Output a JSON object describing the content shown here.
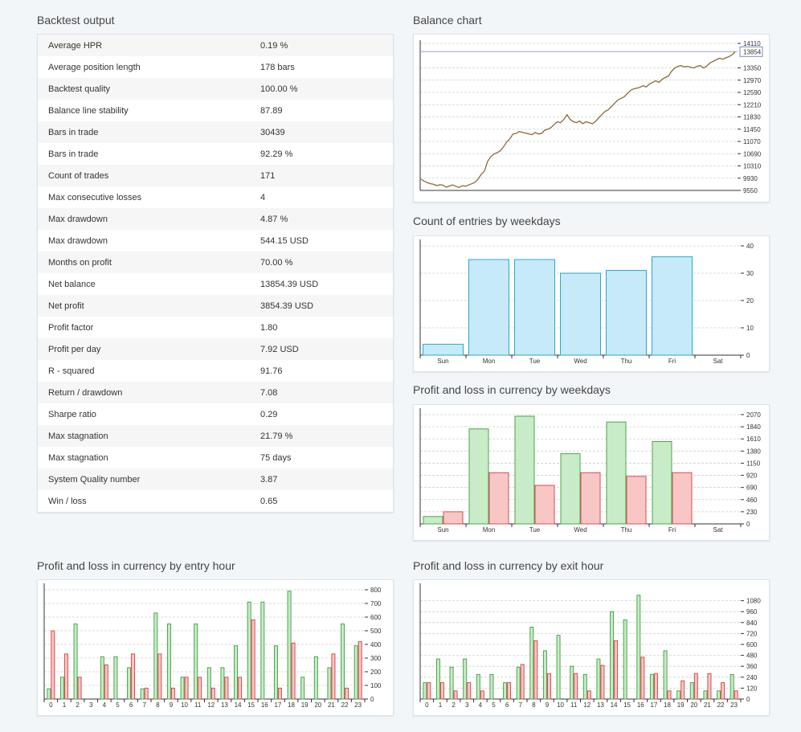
{
  "titles": {
    "backtest": "Backtest output",
    "balance": "Balance chart",
    "entries_weekdays": "Count of entries by weekdays",
    "pl_weekdays": "Profit and loss in currency by weekdays",
    "pl_entry_hour": "Profit and loss in currency by entry hour",
    "pl_exit_hour": "Profit and loss in currency by exit hour"
  },
  "stats": [
    {
      "label": "Average HPR",
      "value": "0.19 %"
    },
    {
      "label": "Average position length",
      "value": "178 bars"
    },
    {
      "label": "Backtest quality",
      "value": "100.00 %"
    },
    {
      "label": "Balance line stability",
      "value": "87.89"
    },
    {
      "label": "Bars in trade",
      "value": "30439"
    },
    {
      "label": "Bars in trade",
      "value": "92.29 %"
    },
    {
      "label": "Count of trades",
      "value": "171"
    },
    {
      "label": "Max consecutive losses",
      "value": "4"
    },
    {
      "label": "Max drawdown",
      "value": "4.87 %"
    },
    {
      "label": "Max drawdown",
      "value": "544.15 USD"
    },
    {
      "label": "Months on profit",
      "value": "70.00 %"
    },
    {
      "label": "Net balance",
      "value": "13854.39 USD"
    },
    {
      "label": "Net profit",
      "value": "3854.39 USD"
    },
    {
      "label": "Profit factor",
      "value": "1.80"
    },
    {
      "label": "Profit per day",
      "value": "7.92 USD"
    },
    {
      "label": "R - squared",
      "value": "91.76"
    },
    {
      "label": "Return / drawdown",
      "value": "7.08"
    },
    {
      "label": "Sharpe ratio",
      "value": "0.29"
    },
    {
      "label": "Max stagnation",
      "value": "21.79 %"
    },
    {
      "label": "Max stagnation",
      "value": "75 days"
    },
    {
      "label": "System Quality number",
      "value": "3.87"
    },
    {
      "label": "Win / loss",
      "value": "0.65"
    }
  ],
  "colors": {
    "profit_fill": "#c8ebc8",
    "profit_stroke": "#4ca64c",
    "loss_fill": "#f9c6c6",
    "loss_stroke": "#d94c4c",
    "count_fill": "#c6eaf8",
    "count_stroke": "#29a8cc",
    "balance_line": "#8a6a3a",
    "grid": "#cfcfcf"
  },
  "chart_data": [
    {
      "id": "balance",
      "type": "line",
      "yticks": [
        "14110",
        "13350",
        "12970",
        "12590",
        "12210",
        "11830",
        "11450",
        "11070",
        "10690",
        "10310",
        "9930",
        "9550"
      ],
      "ylim": [
        9550,
        14110
      ],
      "current_label": "13854",
      "current_value": 13854,
      "values": [
        9900,
        9840,
        9790,
        9760,
        9740,
        9700,
        9730,
        9710,
        9650,
        9690,
        9720,
        9680,
        9640,
        9700,
        9680,
        9720,
        9760,
        9800,
        9900,
        10050,
        10150,
        10450,
        10600,
        10680,
        10720,
        10780,
        10900,
        11050,
        11150,
        11300,
        11320,
        11380,
        11350,
        11330,
        11300,
        11280,
        11350,
        11300,
        11320,
        11420,
        11450,
        11500,
        11600,
        11680,
        11650,
        11750,
        11900,
        11750,
        11680,
        11650,
        11700,
        11620,
        11680,
        11650,
        11620,
        11690,
        11800,
        11900,
        12000,
        12050,
        12150,
        12250,
        12350,
        12400,
        12450,
        12550,
        12650,
        12700,
        12720,
        12750,
        12800,
        12760,
        12850,
        12900,
        12950,
        12900,
        13000,
        13050,
        13100,
        13250,
        13350,
        13400,
        13420,
        13380,
        13400,
        13370,
        13350,
        13400,
        13420,
        13350,
        13400,
        13500,
        13550,
        13600,
        13650,
        13620,
        13660,
        13700,
        13750,
        13854
      ]
    },
    {
      "id": "entries_weekdays",
      "type": "bar",
      "categories": [
        "Sun",
        "Mon",
        "Tue",
        "Wed",
        "Thu",
        "Fri",
        "Sat"
      ],
      "values": [
        4,
        35,
        35,
        30,
        31,
        36,
        0
      ],
      "yticks": [
        "40",
        "30",
        "20",
        "10",
        "0"
      ],
      "ylim": [
        0,
        40
      ]
    },
    {
      "id": "pl_weekdays",
      "type": "bar",
      "categories": [
        "Sun",
        "Mon",
        "Tue",
        "Wed",
        "Thu",
        "Fri",
        "Sat"
      ],
      "series": [
        {
          "values": [
            140,
            1800,
            2040,
            1330,
            1930,
            1560,
            0
          ]
        },
        {
          "values": [
            230,
            970,
            730,
            970,
            900,
            970,
            0
          ]
        }
      ],
      "yticks": [
        "2070",
        "1840",
        "1610",
        "1380",
        "1150",
        "920",
        "690",
        "460",
        "230",
        "0"
      ],
      "ylim": [
        0,
        2070
      ]
    },
    {
      "id": "pl_entry_hour",
      "type": "bar",
      "categories": [
        "0",
        "1",
        "2",
        "3",
        "4",
        "5",
        "6",
        "7",
        "8",
        "9",
        "10",
        "11",
        "12",
        "13",
        "14",
        "15",
        "16",
        "17",
        "18",
        "19",
        "20",
        "21",
        "22",
        "23"
      ],
      "series": [
        {
          "values": [
            75,
            160,
            550,
            0,
            310,
            310,
            230,
            75,
            630,
            550,
            160,
            550,
            230,
            230,
            390,
            710,
            710,
            390,
            790,
            160,
            310,
            230,
            550,
            390
          ]
        },
        {
          "values": [
            500,
            330,
            160,
            0,
            250,
            0,
            330,
            80,
            330,
            80,
            160,
            160,
            80,
            160,
            160,
            580,
            0,
            80,
            410,
            0,
            0,
            330,
            80,
            420
          ]
        }
      ],
      "yticks": [
        "800",
        "700",
        "600",
        "500",
        "400",
        "300",
        "200",
        "100",
        "0"
      ],
      "ylim": [
        0,
        800
      ]
    },
    {
      "id": "pl_exit_hour",
      "type": "bar",
      "categories": [
        "0",
        "1",
        "2",
        "3",
        "4",
        "5",
        "6",
        "7",
        "8",
        "9",
        "10",
        "11",
        "12",
        "13",
        "14",
        "15",
        "16",
        "17",
        "18",
        "19",
        "20",
        "21",
        "22",
        "23"
      ],
      "series": [
        {
          "values": [
            180,
            440,
            350,
            440,
            270,
            270,
            180,
            350,
            790,
            530,
            700,
            360,
            270,
            440,
            960,
            870,
            1140,
            270,
            530,
            90,
            180,
            90,
            90,
            270
          ]
        },
        {
          "values": [
            180,
            180,
            90,
            180,
            90,
            0,
            180,
            380,
            640,
            280,
            0,
            280,
            90,
            370,
            640,
            0,
            460,
            280,
            90,
            200,
            280,
            280,
            180,
            90
          ]
        }
      ],
      "yticks": [
        "1080",
        "960",
        "840",
        "720",
        "600",
        "480",
        "360",
        "240",
        "120",
        "0"
      ],
      "ylim": [
        0,
        1200
      ]
    }
  ]
}
